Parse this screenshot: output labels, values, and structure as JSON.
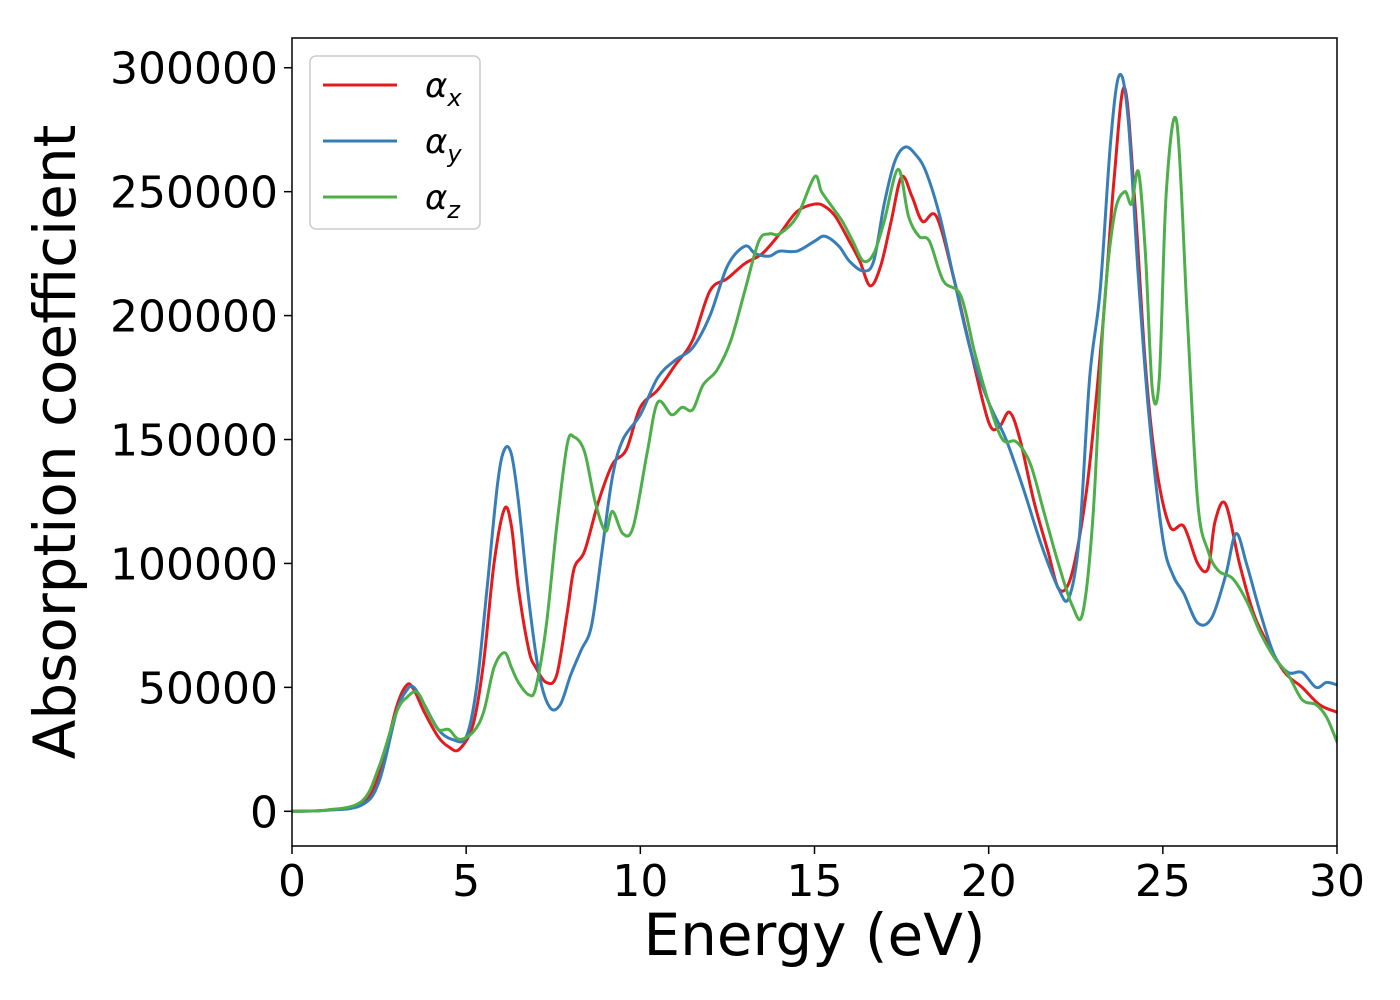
{
  "chart_data": {
    "type": "line",
    "title": "",
    "xlabel": "Energy (eV)",
    "ylabel": "Absorption coefficient",
    "xlim": [
      0,
      30
    ],
    "ylim": [
      -14000,
      312000
    ],
    "xticks": [
      0,
      5,
      10,
      15,
      20,
      25,
      30
    ],
    "yticks": [
      0,
      50000,
      100000,
      150000,
      200000,
      250000,
      300000
    ],
    "grid": false,
    "legend_position": "top-left",
    "series": [
      {
        "name": "αx",
        "label_base": "α",
        "label_sub": "x",
        "color": "#e41a1c",
        "x": [
          0,
          1,
          2,
          2.5,
          3,
          3.3,
          3.5,
          3.8,
          4.2,
          4.5,
          4.8,
          5.2,
          5.5,
          5.8,
          6.1,
          6.3,
          6.5,
          6.8,
          7.0,
          7.3,
          7.6,
          7.9,
          8.1,
          8.4,
          8.8,
          9.2,
          9.6,
          10.0,
          10.5,
          11.0,
          11.5,
          12.0,
          12.5,
          13.0,
          13.5,
          14.0,
          14.5,
          15.0,
          15.3,
          15.6,
          16.0,
          16.3,
          16.6,
          16.9,
          17.2,
          17.5,
          17.8,
          18.1,
          18.5,
          19.0,
          19.5,
          20.0,
          20.3,
          20.6,
          20.9,
          21.3,
          21.7,
          22.0,
          22.3,
          22.6,
          22.9,
          23.3,
          23.6,
          23.9,
          24.2,
          24.5,
          24.8,
          25.2,
          25.6,
          26.0,
          26.3,
          26.5,
          26.8,
          27.2,
          27.6,
          28.0,
          28.5,
          29.0,
          29.5,
          30.0
        ],
        "y": [
          0,
          500,
          3000,
          15000,
          42000,
          51000,
          49000,
          40000,
          30000,
          26000,
          25000,
          35000,
          60000,
          100000,
          122000,
          115000,
          90000,
          65000,
          58000,
          52000,
          55000,
          80000,
          98000,
          105000,
          125000,
          140000,
          146000,
          163000,
          170000,
          180000,
          190000,
          210000,
          215000,
          221000,
          225000,
          233000,
          242000,
          245000,
          244000,
          240000,
          230000,
          222000,
          212000,
          220000,
          238000,
          256000,
          248000,
          238000,
          240000,
          215000,
          185000,
          157000,
          155000,
          161000,
          150000,
          125000,
          105000,
          90000,
          92000,
          110000,
          140000,
          200000,
          255000,
          292000,
          245000,
          180000,
          140000,
          115000,
          115000,
          100000,
          98000,
          117000,
          124000,
          100000,
          80000,
          68000,
          56000,
          50000,
          43000,
          40000
        ]
      },
      {
        "name": "αy",
        "label_base": "α",
        "label_sub": "y",
        "color": "#377eb8",
        "x": [
          0,
          1,
          2,
          2.5,
          3,
          3.3,
          3.5,
          3.8,
          4.2,
          4.6,
          5.0,
          5.3,
          5.6,
          5.9,
          6.1,
          6.3,
          6.5,
          6.8,
          7.1,
          7.4,
          7.7,
          8.0,
          8.3,
          8.6,
          8.9,
          9.2,
          9.5,
          10.0,
          10.5,
          11.0,
          11.5,
          12.0,
          12.5,
          13.0,
          13.3,
          13.7,
          14.0,
          14.5,
          15.0,
          15.3,
          15.7,
          16.0,
          16.4,
          16.7,
          17.0,
          17.3,
          17.6,
          17.9,
          18.2,
          18.6,
          19.0,
          19.5,
          20.0,
          20.5,
          21.0,
          21.5,
          22.0,
          22.3,
          22.6,
          22.9,
          23.2,
          23.5,
          23.75,
          24.0,
          24.3,
          24.6,
          25.0,
          25.3,
          25.6,
          26.0,
          26.4,
          26.8,
          27.1,
          27.4,
          27.8,
          28.2,
          28.6,
          29.0,
          29.4,
          29.7,
          30.0
        ],
        "y": [
          0,
          400,
          2500,
          12000,
          40000,
          49000,
          50000,
          43000,
          33000,
          29000,
          30000,
          50000,
          90000,
          132000,
          146000,
          144000,
          125000,
          85000,
          55000,
          42000,
          43000,
          55000,
          65000,
          75000,
          105000,
          135000,
          150000,
          160000,
          175000,
          182000,
          187000,
          200000,
          220000,
          228000,
          225000,
          224000,
          226000,
          226000,
          230000,
          232000,
          228000,
          222000,
          218000,
          222000,
          245000,
          262000,
          268000,
          265000,
          258000,
          240000,
          215000,
          185000,
          165000,
          150000,
          130000,
          108000,
          90000,
          86000,
          110000,
          175000,
          210000,
          270000,
          297000,
          280000,
          215000,
          160000,
          110000,
          95000,
          88000,
          76000,
          78000,
          95000,
          112000,
          100000,
          80000,
          63000,
          56000,
          56000,
          50000,
          52000,
          51000
        ]
      },
      {
        "name": "αz",
        "label_base": "α",
        "label_sub": "z",
        "color": "#4daf4a",
        "x": [
          0,
          1,
          2,
          2.5,
          3,
          3.3,
          3.6,
          3.9,
          4.2,
          4.5,
          4.8,
          5.2,
          5.5,
          5.8,
          6.1,
          6.3,
          6.5,
          6.8,
          7.0,
          7.3,
          7.6,
          7.9,
          8.1,
          8.4,
          8.7,
          9.0,
          9.2,
          9.5,
          9.8,
          10.2,
          10.5,
          10.9,
          11.2,
          11.5,
          11.8,
          12.2,
          12.6,
          13.0,
          13.4,
          13.7,
          14.0,
          14.5,
          15.0,
          15.2,
          15.5,
          15.8,
          16.1,
          16.4,
          16.7,
          17.0,
          17.4,
          17.7,
          18.0,
          18.3,
          18.7,
          19.2,
          19.6,
          20.0,
          20.4,
          20.8,
          21.2,
          21.6,
          22.0,
          22.4,
          22.7,
          23.0,
          23.3,
          23.6,
          23.9,
          24.1,
          24.3,
          24.5,
          24.7,
          24.9,
          25.1,
          25.4,
          25.7,
          26.0,
          26.3,
          26.6,
          27.0,
          27.4,
          27.8,
          28.2,
          28.6,
          29.0,
          29.4,
          29.7,
          30.0
        ],
        "y": [
          0,
          500,
          4000,
          18000,
          40000,
          46000,
          48000,
          40000,
          33000,
          33000,
          29000,
          32000,
          40000,
          58000,
          64000,
          58000,
          52000,
          47000,
          50000,
          75000,
          115000,
          148000,
          151000,
          145000,
          125000,
          113000,
          121000,
          112000,
          115000,
          145000,
          165000,
          160000,
          163000,
          162000,
          172000,
          178000,
          190000,
          210000,
          230000,
          233000,
          233000,
          240000,
          256000,
          250000,
          244000,
          238000,
          230000,
          222000,
          225000,
          238000,
          259000,
          240000,
          232000,
          230000,
          214000,
          208000,
          185000,
          165000,
          150000,
          149000,
          140000,
          120000,
          100000,
          83000,
          80000,
          120000,
          200000,
          240000,
          250000,
          245000,
          258000,
          225000,
          170000,
          175000,
          250000,
          278000,
          200000,
          125000,
          105000,
          97000,
          94000,
          85000,
          72000,
          62000,
          55000,
          45000,
          43000,
          38000,
          28000
        ]
      }
    ]
  }
}
